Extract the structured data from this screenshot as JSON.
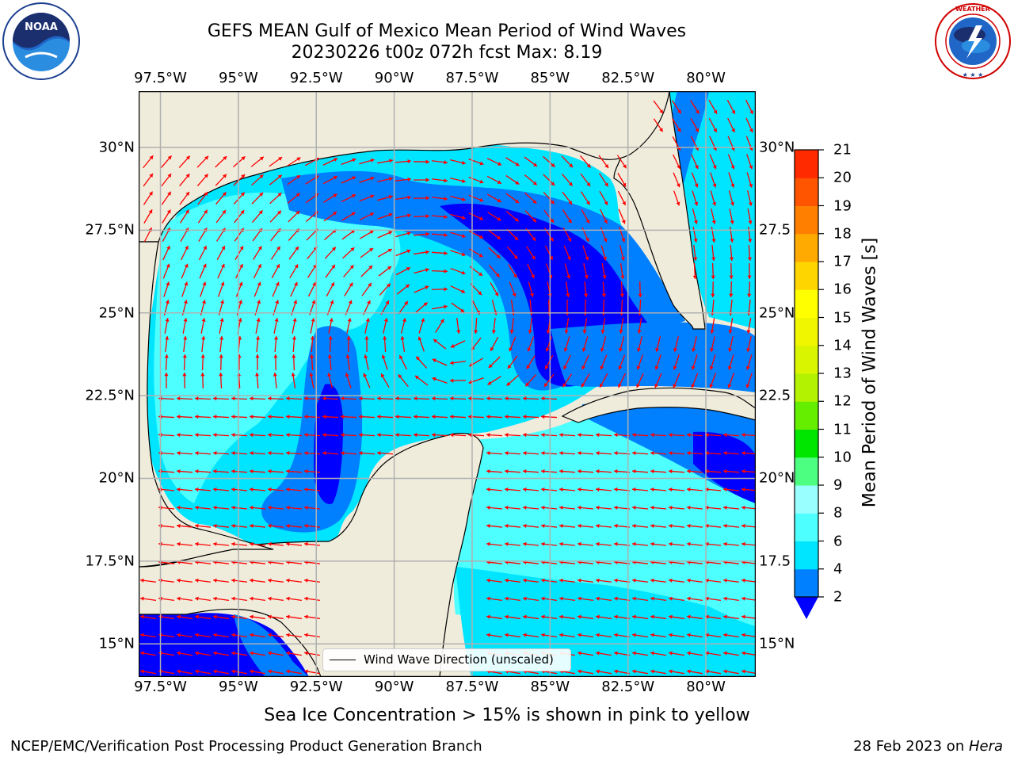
{
  "title": {
    "line1": "GEFS MEAN Gulf of Mexico Mean Period of Wind Waves",
    "line2": "20230226 t00z 072h fcst   Max: 8.19"
  },
  "logos": {
    "left": "noaa-logo",
    "right": "national-weather-service-logo"
  },
  "map": {
    "lon_ticks": [
      "97.5°W",
      "95°W",
      "92.5°W",
      "90°W",
      "87.5°W",
      "85°W",
      "82.5°W",
      "80°W"
    ],
    "lon_values": [
      -97.5,
      -95,
      -92.5,
      -90,
      -87.5,
      -85,
      -82.5,
      -80
    ],
    "lat_ticks": [
      "30°N",
      "27.5°N",
      "25°N",
      "22.5°N",
      "20°N",
      "17.5°N",
      "15°N"
    ],
    "lat_values": [
      30,
      27.5,
      25,
      22.5,
      20,
      17.5,
      15
    ],
    "lat_ticks_right": [
      "30°N",
      "27.5",
      "25°N",
      "22.5",
      "20°N",
      "17.5",
      "15°N"
    ],
    "extent": {
      "lon_min": -98.2,
      "lon_max": -78.4,
      "lat_min": 14.0,
      "lat_max": 31.7
    },
    "legend": "Wind Wave Direction (unscaled)",
    "colors": {
      "land": "#efecdc",
      "coast": "#000000",
      "grid": "#b0b0b0",
      "arrow": "#ff0000"
    }
  },
  "colorbar": {
    "title": "Mean Period of Wind Waves [s]",
    "levels": [
      "2",
      "4",
      "6",
      "8",
      "9",
      "10",
      "11",
      "12",
      "13",
      "14",
      "15",
      "16",
      "17",
      "18",
      "19",
      "20",
      "21"
    ],
    "colors": [
      "#0080ff",
      "#00e5ff",
      "#4dffff",
      "#99ffff",
      "#4dff80",
      "#00e600",
      "#66ee00",
      "#b3f200",
      "#d9f500",
      "#f0f500",
      "#ffff00",
      "#ffd500",
      "#ffaa00",
      "#ff8000",
      "#ff5500",
      "#ff2a00"
    ],
    "under_color": "#0000ff"
  },
  "subtitle": "Sea Ice Concentration > 15% is shown in pink to yellow",
  "footer": {
    "left": "NCEP/EMC/Verification Post Processing Product Generation Branch",
    "right_date": "28 Feb 2023 on ",
    "right_machine": "Hera"
  }
}
